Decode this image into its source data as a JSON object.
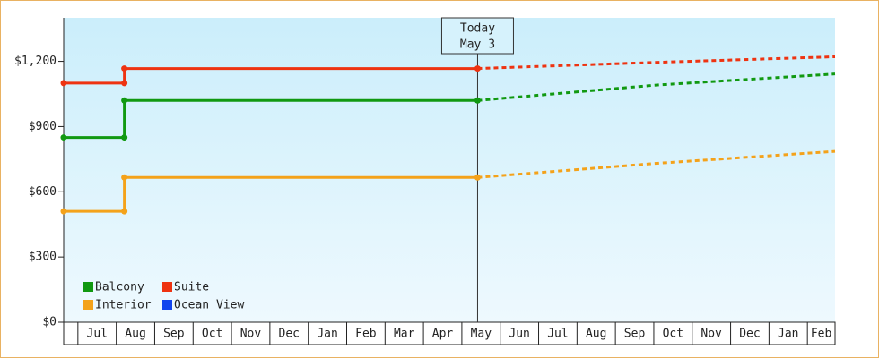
{
  "chart_data": {
    "type": "line",
    "categories": [
      "Jul",
      "Aug",
      "Sep",
      "Oct",
      "Nov",
      "Dec",
      "Jan",
      "Feb",
      "Mar",
      "Apr",
      "May",
      "Jun",
      "Jul",
      "Aug",
      "Sep",
      "Oct",
      "Nov",
      "Dec",
      "Jan",
      "Feb"
    ],
    "xlim": [
      -0.37,
      19.72
    ],
    "ylim": [
      0,
      1400
    ],
    "yticks": [
      {
        "value": 0,
        "label": "$0"
      },
      {
        "value": 300,
        "label": "$300"
      },
      {
        "value": 600,
        "label": "$600"
      },
      {
        "value": 900,
        "label": "$900"
      },
      {
        "value": 1200,
        "label": "$1,200"
      }
    ],
    "annotation": {
      "x": 10.41,
      "lines": [
        "Today",
        "May 3"
      ]
    },
    "series": [
      {
        "name": "Balcony",
        "color": "#119911",
        "x": [
          -0.37,
          1.21,
          1.21,
          10.41
        ],
        "values": [
          850,
          850,
          1020,
          1020
        ],
        "projection": {
          "x": [
            10.41,
            15,
            19.72
          ],
          "values": [
            1020,
            1090,
            1142
          ]
        }
      },
      {
        "name": "Suite",
        "color": "#ee3311",
        "x": [
          -0.37,
          1.21,
          1.21,
          10.41
        ],
        "values": [
          1100,
          1100,
          1167,
          1167
        ],
        "projection": {
          "x": [
            10.41,
            15,
            19.72
          ],
          "values": [
            1167,
            1195,
            1221
          ]
        }
      },
      {
        "name": "Interior",
        "color": "#f4a21a",
        "x": [
          -0.37,
          1.21,
          1.21,
          10.41
        ],
        "values": [
          510,
          510,
          666,
          666
        ],
        "projection": {
          "x": [
            10.41,
            15,
            19.72
          ],
          "values": [
            666,
            730,
            786
          ]
        }
      },
      {
        "name": "Ocean View",
        "color": "#1144ee",
        "x": [],
        "values": []
      }
    ]
  }
}
